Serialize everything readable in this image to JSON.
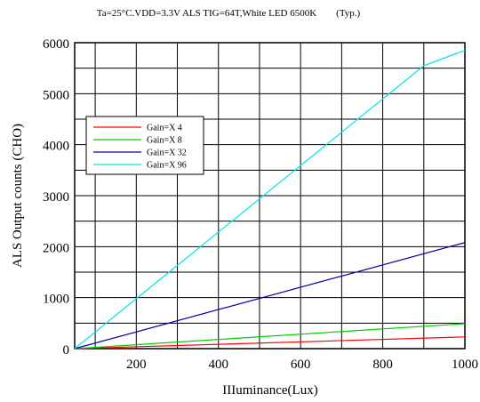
{
  "chart_data": {
    "type": "line",
    "title": "Ta=25°C.VDD=3.3V ALS TIG=64T,White LED 6500K        (Typ.)",
    "xlabel": "IIIuminance(Lux)",
    "ylabel": "ALS Output counts (CHO)",
    "xlim": [
      50,
      1000
    ],
    "ylim": [
      0,
      6000
    ],
    "x_ticks": [
      200,
      400,
      600,
      800,
      1000
    ],
    "y_ticks": [
      0,
      1000,
      2000,
      3000,
      4000,
      5000,
      6000
    ],
    "grid": true,
    "legend_position": "upper-left",
    "series": [
      {
        "name": "Gain=X 4",
        "color": "#ff0000",
        "x": [
          50,
          1000
        ],
        "y": [
          0,
          230
        ]
      },
      {
        "name": "Gain=X 8",
        "color": "#00cc00",
        "x": [
          50,
          1000
        ],
        "y": [
          0,
          490
        ]
      },
      {
        "name": "Gain=X 32",
        "color": "#0000aa",
        "x": [
          50,
          1000
        ],
        "y": [
          0,
          2080
        ]
      },
      {
        "name": "Gain=X 96",
        "color": "#00e5e5",
        "x": [
          50,
          900,
          1000
        ],
        "y": [
          0,
          5550,
          5850
        ]
      }
    ]
  }
}
